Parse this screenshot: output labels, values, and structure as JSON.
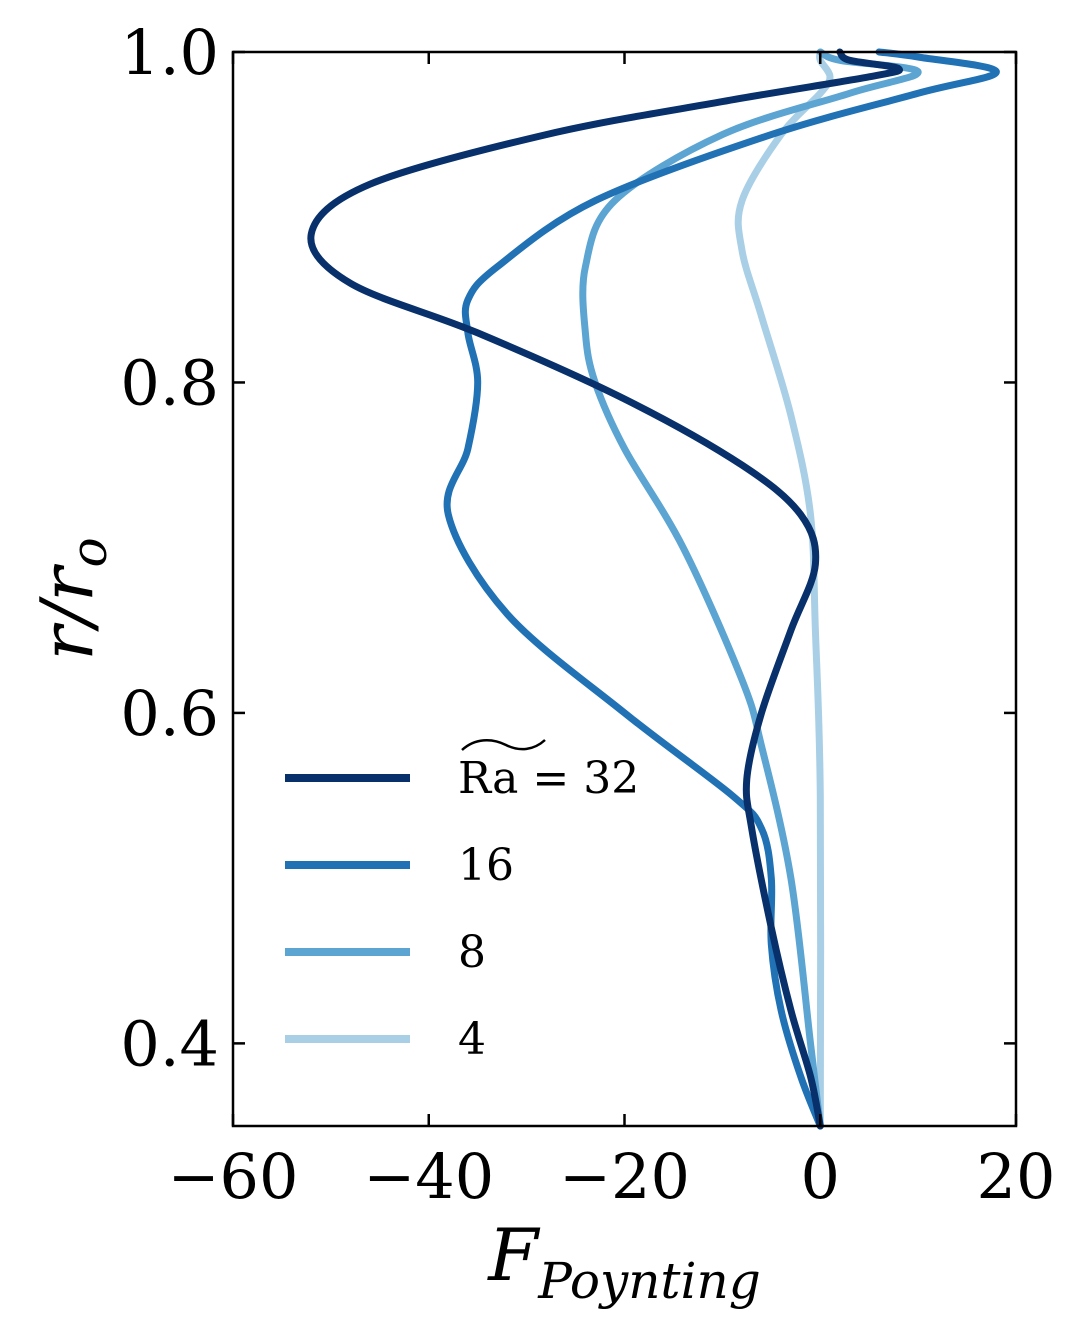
{
  "chart_data": {
    "type": "line",
    "xlabel": "F",
    "xlabel_sub": "Poynting",
    "ylabel": "r/r",
    "ylabel_sub": "o",
    "xlim": [
      -60,
      20
    ],
    "ylim": [
      0.35,
      1.0
    ],
    "xticks": [
      -60,
      -40,
      -20,
      0,
      20
    ],
    "xtick_labels": [
      "−60",
      "−40",
      "−20",
      "0",
      "20"
    ],
    "yticks": [
      0.4,
      0.6,
      0.8,
      1.0
    ],
    "ytick_labels": [
      "0.4",
      "0.6",
      "0.8",
      "1.0"
    ],
    "legend_position": "lower-left",
    "series": [
      {
        "name": "Ra = 32",
        "color": "#08306b",
        "points": [
          [
            0,
            0.35
          ],
          [
            -1,
            0.38
          ],
          [
            -3,
            0.42
          ],
          [
            -5,
            0.47
          ],
          [
            -7,
            0.53
          ],
          [
            -7.5,
            0.56
          ],
          [
            -6,
            0.6
          ],
          [
            -3,
            0.65
          ],
          [
            -0.5,
            0.69
          ],
          [
            -2,
            0.72
          ],
          [
            -8,
            0.75
          ],
          [
            -20,
            0.79
          ],
          [
            -35,
            0.83
          ],
          [
            -48,
            0.86
          ],
          [
            -52,
            0.89
          ],
          [
            -46,
            0.92
          ],
          [
            -28,
            0.95
          ],
          [
            -10,
            0.97
          ],
          [
            5,
            0.985
          ],
          [
            8,
            0.99
          ],
          [
            3,
            0.995
          ],
          [
            2,
            1.0
          ]
        ]
      },
      {
        "name": "16",
        "color": "#2171b5",
        "points": [
          [
            0,
            0.35
          ],
          [
            -2,
            0.38
          ],
          [
            -4,
            0.42
          ],
          [
            -5,
            0.46
          ],
          [
            -5,
            0.5
          ],
          [
            -6,
            0.53
          ],
          [
            -9,
            0.55
          ],
          [
            -20,
            0.6
          ],
          [
            -32,
            0.66
          ],
          [
            -38,
            0.72
          ],
          [
            -36,
            0.76
          ],
          [
            -35,
            0.8
          ],
          [
            -36,
            0.83
          ],
          [
            -36,
            0.85
          ],
          [
            -33,
            0.87
          ],
          [
            -23,
            0.91
          ],
          [
            -5,
            0.95
          ],
          [
            10,
            0.975
          ],
          [
            18,
            0.988
          ],
          [
            10,
            0.997
          ],
          [
            6,
            1.0
          ]
        ]
      },
      {
        "name": "8",
        "color": "#5ca4d2",
        "points": [
          [
            0,
            0.35
          ],
          [
            -1,
            0.4
          ],
          [
            -3,
            0.5
          ],
          [
            -6,
            0.58
          ],
          [
            -8,
            0.62
          ],
          [
            -14,
            0.7
          ],
          [
            -20,
            0.76
          ],
          [
            -23,
            0.8
          ],
          [
            -24,
            0.83
          ],
          [
            -24,
            0.87
          ],
          [
            -21,
            0.91
          ],
          [
            -10,
            0.95
          ],
          [
            3,
            0.975
          ],
          [
            10,
            0.988
          ],
          [
            2,
            0.995
          ],
          [
            0,
            1.0
          ]
        ]
      },
      {
        "name": "4",
        "color": "#a9cfe6",
        "points": [
          [
            0,
            0.35
          ],
          [
            0,
            0.55
          ],
          [
            -0.5,
            0.65
          ],
          [
            -1,
            0.72
          ],
          [
            -3,
            0.78
          ],
          [
            -6,
            0.84
          ],
          [
            -8,
            0.88
          ],
          [
            -8,
            0.91
          ],
          [
            -4,
            0.95
          ],
          [
            0,
            0.975
          ],
          [
            1,
            0.985
          ],
          [
            0,
            0.995
          ],
          [
            0,
            1.0
          ]
        ]
      }
    ]
  }
}
